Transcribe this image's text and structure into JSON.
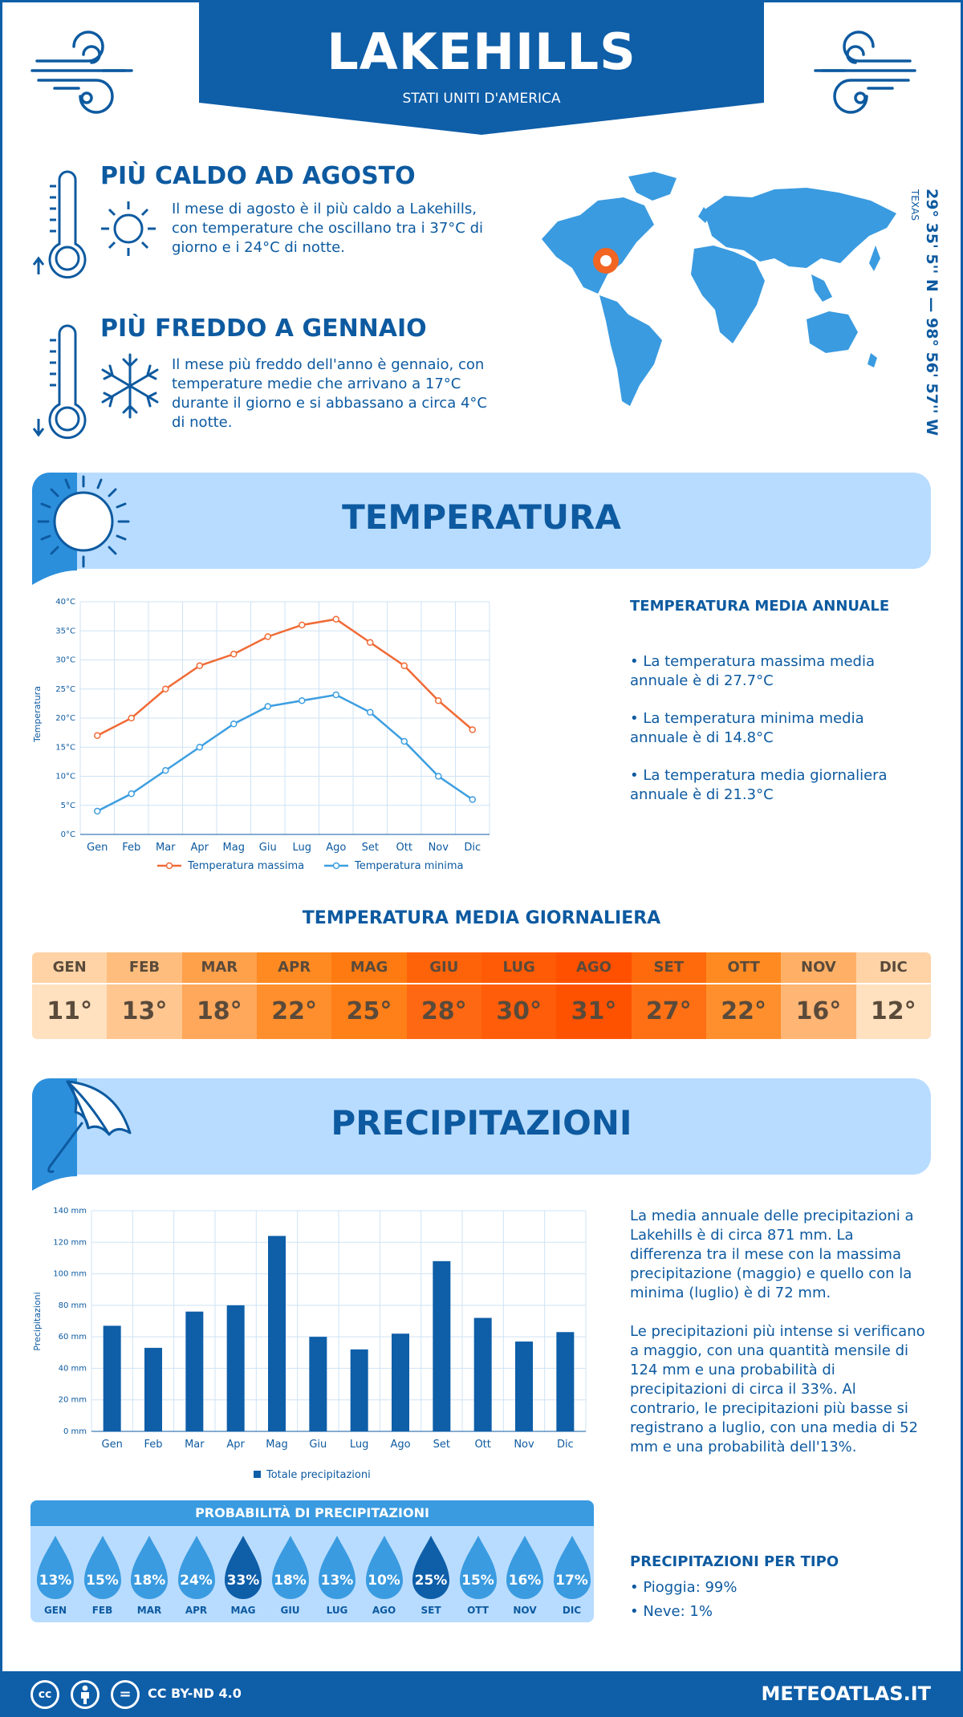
{
  "header": {
    "city": "LAKEHILLS",
    "country": "STATI UNITI D'AMERICA"
  },
  "hottest": {
    "title": "PIÙ CALDO AD AGOSTO",
    "text": "Il mese di agosto è il più caldo a Lakehills, con temperature che oscillano tra i 37°C di giorno e i 24°C di notte."
  },
  "coldest": {
    "title": "PIÙ FREDDO A GENNAIO",
    "text": "Il mese più freddo dell'anno è gennaio, con temperature medie che arrivano a 17°C durante il giorno e si abbassano a circa 4°C di notte."
  },
  "location": {
    "coords": "29° 35' 5'' N — 98° 56' 57'' W",
    "state": "TEXAS"
  },
  "temperature_section": {
    "title": "TEMPERATURA",
    "stats_title": "TEMPERATURA MEDIA ANNUALE",
    "stats": [
      "• La temperatura massima media annuale è di 27.7°C",
      "• La temperatura minima media annuale è di 14.8°C",
      "• La temperatura media giornaliera annuale è di 21.3°C"
    ]
  },
  "chart_data": [
    {
      "type": "line",
      "ylabel": "Temperatura",
      "categories": [
        "Gen",
        "Feb",
        "Mar",
        "Apr",
        "Mag",
        "Giu",
        "Lug",
        "Ago",
        "Set",
        "Ott",
        "Nov",
        "Dic"
      ],
      "yticks": [
        "0°C",
        "5°C",
        "10°C",
        "15°C",
        "20°C",
        "25°C",
        "30°C",
        "35°C",
        "40°C"
      ],
      "ylim": [
        0,
        40
      ],
      "grid": true,
      "legend_position": "bottom",
      "series": [
        {
          "name": "Temperatura massima",
          "color": "#f06a35",
          "values": [
            17,
            20,
            25,
            29,
            31,
            34,
            36,
            37,
            33,
            29,
            23,
            18
          ]
        },
        {
          "name": "Temperatura minima",
          "color": "#3d9ee0",
          "values": [
            4,
            7,
            11,
            15,
            19,
            22,
            23,
            24,
            21,
            16,
            10,
            6
          ]
        }
      ]
    },
    {
      "type": "bar",
      "ylabel": "Precipitazioni",
      "categories": [
        "Gen",
        "Feb",
        "Mar",
        "Apr",
        "Mag",
        "Giu",
        "Lug",
        "Ago",
        "Set",
        "Ott",
        "Nov",
        "Dic"
      ],
      "yticks": [
        "0 mm",
        "20 mm",
        "40 mm",
        "60 mm",
        "80 mm",
        "100 mm",
        "120 mm",
        "140 mm"
      ],
      "ylim": [
        0,
        140
      ],
      "grid": true,
      "legend_position": "bottom",
      "series": [
        {
          "name": "Totale precipitazioni",
          "color": "#0e5ea8",
          "values": [
            67,
            53,
            76,
            80,
            124,
            60,
            52,
            62,
            108,
            72,
            57,
            63
          ]
        }
      ]
    }
  ],
  "daily": {
    "title": "TEMPERATURA MEDIA GIORNALIERA",
    "months": [
      "GEN",
      "FEB",
      "MAR",
      "APR",
      "MAG",
      "GIU",
      "LUG",
      "AGO",
      "SET",
      "OTT",
      "NOV",
      "DIC"
    ],
    "values": [
      "11°",
      "13°",
      "18°",
      "22°",
      "25°",
      "28°",
      "30°",
      "31°",
      "27°",
      "22°",
      "16°",
      "12°"
    ],
    "header_colors": [
      "#ffd3a6",
      "#ffbd7d",
      "#ffa04a",
      "#ff8a22",
      "#ff7a10",
      "#ff630a",
      "#ff5a05",
      "#ff5000",
      "#ff6a0c",
      "#ff8a22",
      "#ffb066",
      "#ffd3a6"
    ],
    "value_colors": [
      "#ffe0bf",
      "#ffc690",
      "#ffa75a",
      "#ff8f2c",
      "#ff7f18",
      "#ff6812",
      "#ff5d0a",
      "#ff5200",
      "#ff7015",
      "#ff8f2c",
      "#ffb574",
      "#ffe0bf"
    ]
  },
  "precip_section": {
    "title": "PRECIPITAZIONI",
    "text1": "La media annuale delle precipitazioni a Lakehills è di circa 871 mm. La differenza tra il mese con la massima precipitazione (maggio) e quello con la minima (luglio) è di 72 mm.",
    "text2": "Le precipitazioni più intense si verificano a maggio, con una quantità mensile di 124 mm e una probabilità di precipitazioni di circa il 33%. Al contrario, le precipitazioni più basse si registrano a luglio, con una media di 52 mm e una probabilità dell'13%."
  },
  "probability": {
    "title": "PROBABILITÀ DI PRECIPITAZIONI",
    "months": [
      "GEN",
      "FEB",
      "MAR",
      "APR",
      "MAG",
      "GIU",
      "LUG",
      "AGO",
      "SET",
      "OTT",
      "NOV",
      "DIC"
    ],
    "values": [
      "13%",
      "15%",
      "18%",
      "24%",
      "33%",
      "18%",
      "13%",
      "10%",
      "25%",
      "15%",
      "16%",
      "17%"
    ],
    "dark": [
      false,
      false,
      false,
      false,
      true,
      false,
      false,
      false,
      true,
      false,
      false,
      false
    ]
  },
  "precip_type": {
    "title": "PRECIPITAZIONI PER TIPO",
    "rain": "• Pioggia: 99%",
    "snow": "• Neve: 1%"
  },
  "footer": {
    "license": "CC BY-ND 4.0",
    "site": "METEOATLAS.IT",
    "cc_glyph": "cc",
    "eq_glyph": "="
  }
}
